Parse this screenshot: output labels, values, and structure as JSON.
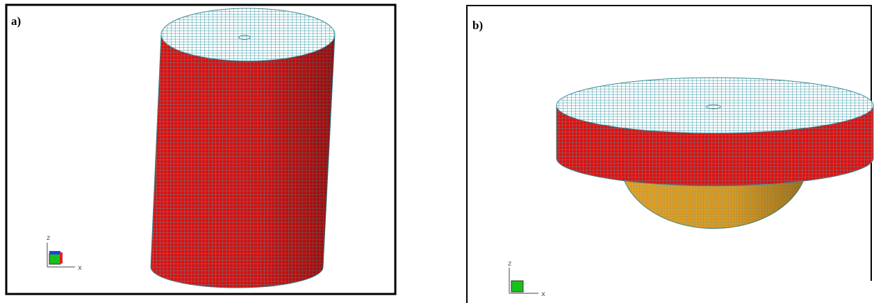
{
  "panels": [
    {
      "label": "a)",
      "axis_z": "z",
      "axis_x": "x"
    },
    {
      "label": "b)",
      "axis_z": "z",
      "axis_x": "x"
    }
  ]
}
